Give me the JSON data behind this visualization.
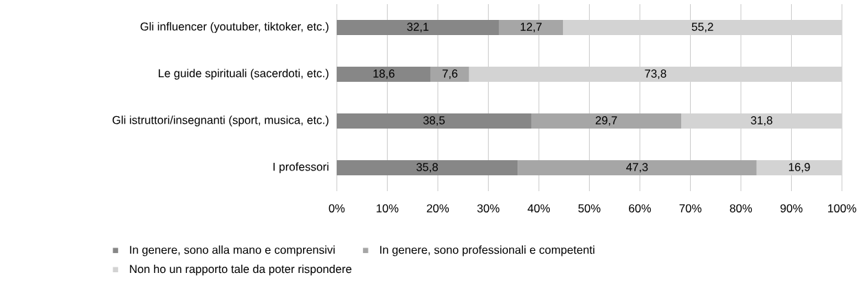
{
  "chart_data": {
    "type": "bar",
    "orientation": "horizontal",
    "stacked": true,
    "categories": [
      "Gli influencer (youtuber, tiktoker, etc.)",
      "Le guide spirituali (sacerdoti, etc.)",
      "Gli istruttori/insegnanti (sport, musica, etc.)",
      "I professori"
    ],
    "series": [
      {
        "name": "In genere, sono alla mano e comprensivi",
        "color": "#878787",
        "values": [
          32.1,
          18.6,
          38.5,
          35.8
        ],
        "value_labels": [
          "32,1",
          "18,6",
          "38,5",
          "35,8"
        ]
      },
      {
        "name": "In genere, sono professionali e competenti",
        "color": "#a6a6a6",
        "values": [
          12.7,
          7.6,
          29.7,
          47.3
        ],
        "value_labels": [
          "12,7",
          "7,6",
          "29,7",
          "47,3"
        ]
      },
      {
        "name": "Non ho un rapporto tale da poter rispondere",
        "color": "#d3d3d3",
        "values": [
          55.2,
          73.8,
          31.8,
          16.9
        ],
        "value_labels": [
          "55,2",
          "73,8",
          "31,8",
          "16,9"
        ]
      }
    ],
    "xlim": [
      0,
      100
    ],
    "xticks": [
      {
        "value": 0,
        "label": "0%"
      },
      {
        "value": 10,
        "label": "10%"
      },
      {
        "value": 20,
        "label": "20%"
      },
      {
        "value": 30,
        "label": "30%"
      },
      {
        "value": 40,
        "label": "40%"
      },
      {
        "value": 50,
        "label": "50%"
      },
      {
        "value": 60,
        "label": "60%"
      },
      {
        "value": 70,
        "label": "70%"
      },
      {
        "value": 80,
        "label": "80%"
      },
      {
        "value": 90,
        "label": "90%"
      },
      {
        "value": 100,
        "label": "100%"
      }
    ],
    "grid": "x",
    "legend": "bottom"
  }
}
